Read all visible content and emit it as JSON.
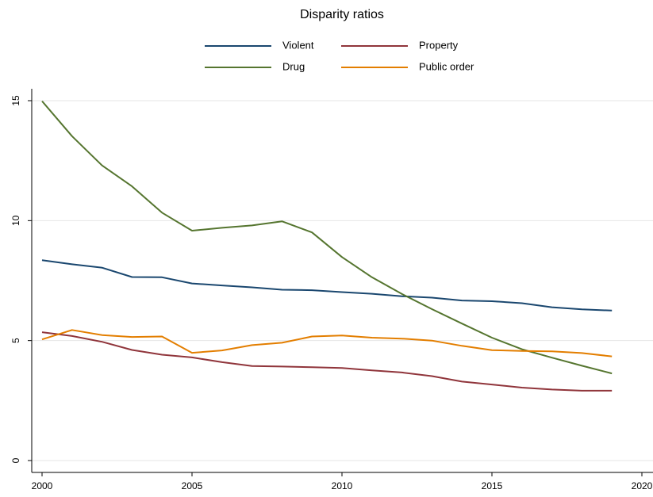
{
  "chart_data": {
    "type": "line",
    "title": "Disparity ratios",
    "xlabel": "",
    "ylabel": "",
    "xlim": [
      2000,
      2020
    ],
    "ylim": [
      0,
      15
    ],
    "xticks": [
      2000,
      2005,
      2010,
      2015,
      2020
    ],
    "yticks": [
      0,
      5,
      10,
      15
    ],
    "grid": true,
    "legend_position": "top",
    "x": [
      2000,
      2001,
      2002,
      2003,
      2004,
      2005,
      2006,
      2007,
      2008,
      2009,
      2010,
      2011,
      2012,
      2013,
      2014,
      2015,
      2016,
      2017,
      2018,
      2019
    ],
    "series": [
      {
        "name": "Violent",
        "color": "#1a476f",
        "values": [
          8.35,
          8.18,
          8.04,
          7.65,
          7.64,
          7.38,
          7.3,
          7.22,
          7.12,
          7.1,
          7.02,
          6.95,
          6.85,
          6.79,
          6.67,
          6.64,
          6.56,
          6.39,
          6.3,
          6.25
        ]
      },
      {
        "name": "Property",
        "color": "#90353b",
        "values": [
          5.35,
          5.19,
          4.95,
          4.61,
          4.41,
          4.3,
          4.1,
          3.94,
          3.92,
          3.89,
          3.86,
          3.76,
          3.67,
          3.52,
          3.29,
          3.17,
          3.04,
          2.96,
          2.91,
          2.91
        ]
      },
      {
        "name": "Drug",
        "color": "#55752f",
        "values": [
          14.98,
          13.52,
          12.3,
          11.43,
          10.33,
          9.58,
          9.7,
          9.8,
          9.97,
          9.51,
          8.48,
          7.64,
          6.94,
          6.31,
          5.71,
          5.12,
          4.64,
          4.29,
          3.95,
          3.63
        ]
      },
      {
        "name": "Public order",
        "color": "#e37e00",
        "values": [
          5.05,
          5.44,
          5.23,
          5.15,
          5.17,
          4.49,
          4.59,
          4.81,
          4.91,
          5.17,
          5.21,
          5.12,
          5.08,
          5.0,
          4.78,
          4.6,
          4.57,
          4.55,
          4.48,
          4.34
        ]
      }
    ]
  }
}
